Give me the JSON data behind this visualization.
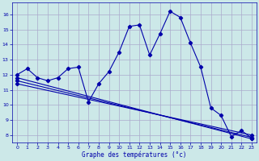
{
  "xlabel": "Graphe des températures (°c)",
  "background_color": "#cce8e8",
  "grid_color": "#aaaacc",
  "line_color": "#0000aa",
  "xlim": [
    -0.5,
    23.5
  ],
  "ylim": [
    7.5,
    16.8
  ],
  "yticks": [
    8,
    9,
    10,
    11,
    12,
    13,
    14,
    15,
    16
  ],
  "xticks": [
    0,
    1,
    2,
    3,
    4,
    5,
    6,
    7,
    8,
    9,
    10,
    11,
    12,
    13,
    14,
    15,
    16,
    17,
    18,
    19,
    20,
    21,
    22,
    23
  ],
  "line1_x": [
    0,
    1,
    2,
    3,
    4,
    5,
    6,
    7,
    8,
    9,
    10,
    11,
    12,
    13,
    14,
    15,
    16,
    17,
    18,
    19,
    20,
    21,
    22,
    23
  ],
  "line1_y": [
    12.0,
    12.4,
    11.8,
    11.6,
    11.8,
    12.4,
    12.5,
    10.2,
    11.4,
    12.2,
    13.5,
    15.2,
    15.3,
    13.3,
    14.7,
    16.2,
    15.8,
    14.1,
    12.5,
    9.8,
    9.3,
    7.9,
    8.3,
    7.8
  ],
  "line2_x": [
    0,
    23
  ],
  "line2_y": [
    11.8,
    7.75
  ],
  "line3_x": [
    0,
    23
  ],
  "line3_y": [
    11.6,
    7.85
  ],
  "line4_x": [
    0,
    23
  ],
  "line4_y": [
    11.4,
    8.0
  ],
  "ylabel_ticks": [
    "8",
    "9",
    "10",
    "11",
    "12",
    "13",
    "14",
    "15",
    "16"
  ]
}
